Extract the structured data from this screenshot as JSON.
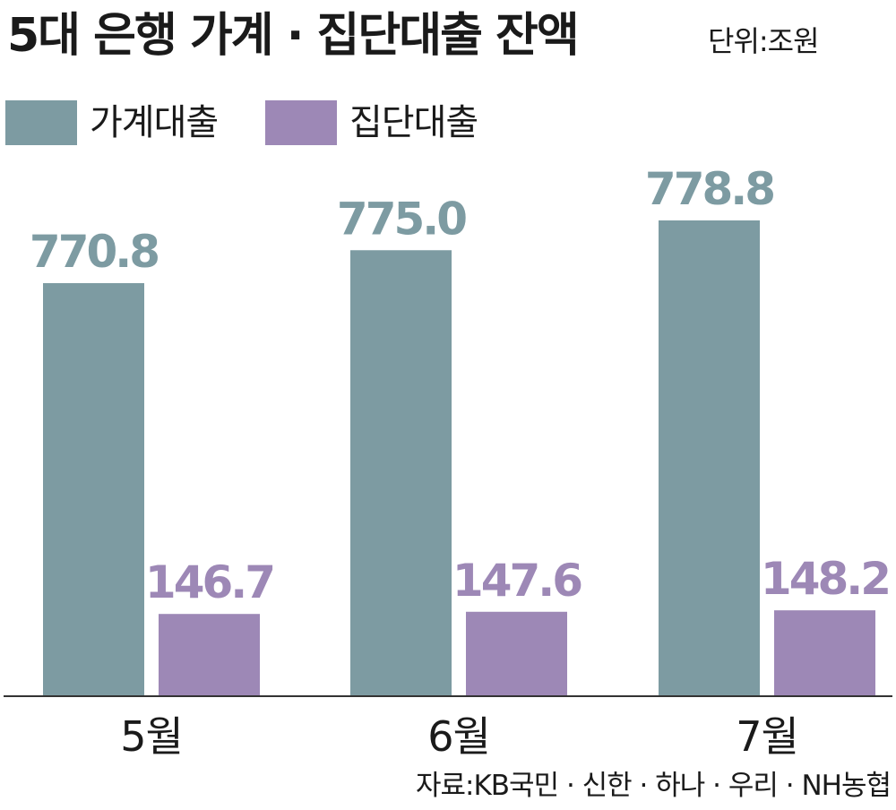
{
  "title": "5대 은행 가계 · 집단대출 잔액",
  "unit": "단위:조원",
  "source": "자료:KB국민 · 신한 · 하나 · 우리 · NH농협",
  "colors": {
    "household": "#7d9ba2",
    "group": "#9d88b6",
    "axis": "#333333"
  },
  "chart_data": {
    "type": "bar",
    "categories": [
      "5월",
      "6월",
      "7월"
    ],
    "series": [
      {
        "name": "가계대출",
        "values": [
          770.8,
          775.0,
          778.8
        ]
      },
      {
        "name": "집단대출",
        "values": [
          146.7,
          147.6,
          148.2
        ]
      }
    ],
    "value_labels": [
      [
        "770.8",
        "775.0",
        "778.8"
      ],
      [
        "146.7",
        "147.6",
        "148.2"
      ]
    ],
    "grid": false,
    "legend": "top-left"
  }
}
